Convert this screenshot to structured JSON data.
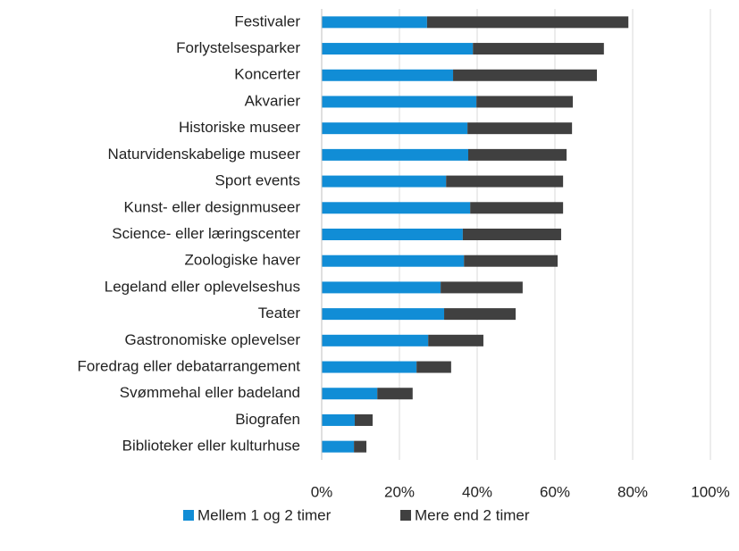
{
  "chart_data": {
    "type": "stacked-barh",
    "categories": [
      "Festivaler",
      "Forlystelsesparker",
      "Koncerter",
      "Akvarier",
      "Historiske museer",
      "Naturvidenskabelige museer",
      "Sport events",
      "Kunst- eller designmuseer",
      "Science- eller læringscenter",
      "Zoologiske haver",
      "Legeland eller oplevelseshus",
      "Teater",
      "Gastronomiske oplevelser",
      "Foredrag eller debatarrangement",
      "Svømmehal eller badeland",
      "Biografen",
      "Biblioteker eller kulturhuse"
    ],
    "series": [
      {
        "name": "Mellem 1 og 2 timer",
        "color": "#118dd6",
        "values": [
          27.1,
          38.9,
          33.8,
          39.8,
          37.5,
          37.7,
          32.0,
          38.2,
          36.3,
          36.6,
          30.6,
          31.5,
          27.4,
          24.4,
          14.3,
          8.5,
          8.3
        ]
      },
      {
        "name": "Mere end 2 timer",
        "color": "#404040",
        "values": [
          51.8,
          33.7,
          37.0,
          24.8,
          26.9,
          25.3,
          30.1,
          23.9,
          25.3,
          24.1,
          21.1,
          18.4,
          14.2,
          8.9,
          9.1,
          4.6,
          3.2
        ]
      }
    ],
    "xlim": [
      0,
      100
    ],
    "xticks": [
      {
        "value": 0,
        "label": "0%"
      },
      {
        "value": 20,
        "label": "20%"
      },
      {
        "value": 40,
        "label": "40%"
      },
      {
        "value": 60,
        "label": "60%"
      },
      {
        "value": 80,
        "label": "80%"
      },
      {
        "value": 100,
        "label": "100%"
      }
    ],
    "grid": true,
    "legend": "bottom"
  }
}
